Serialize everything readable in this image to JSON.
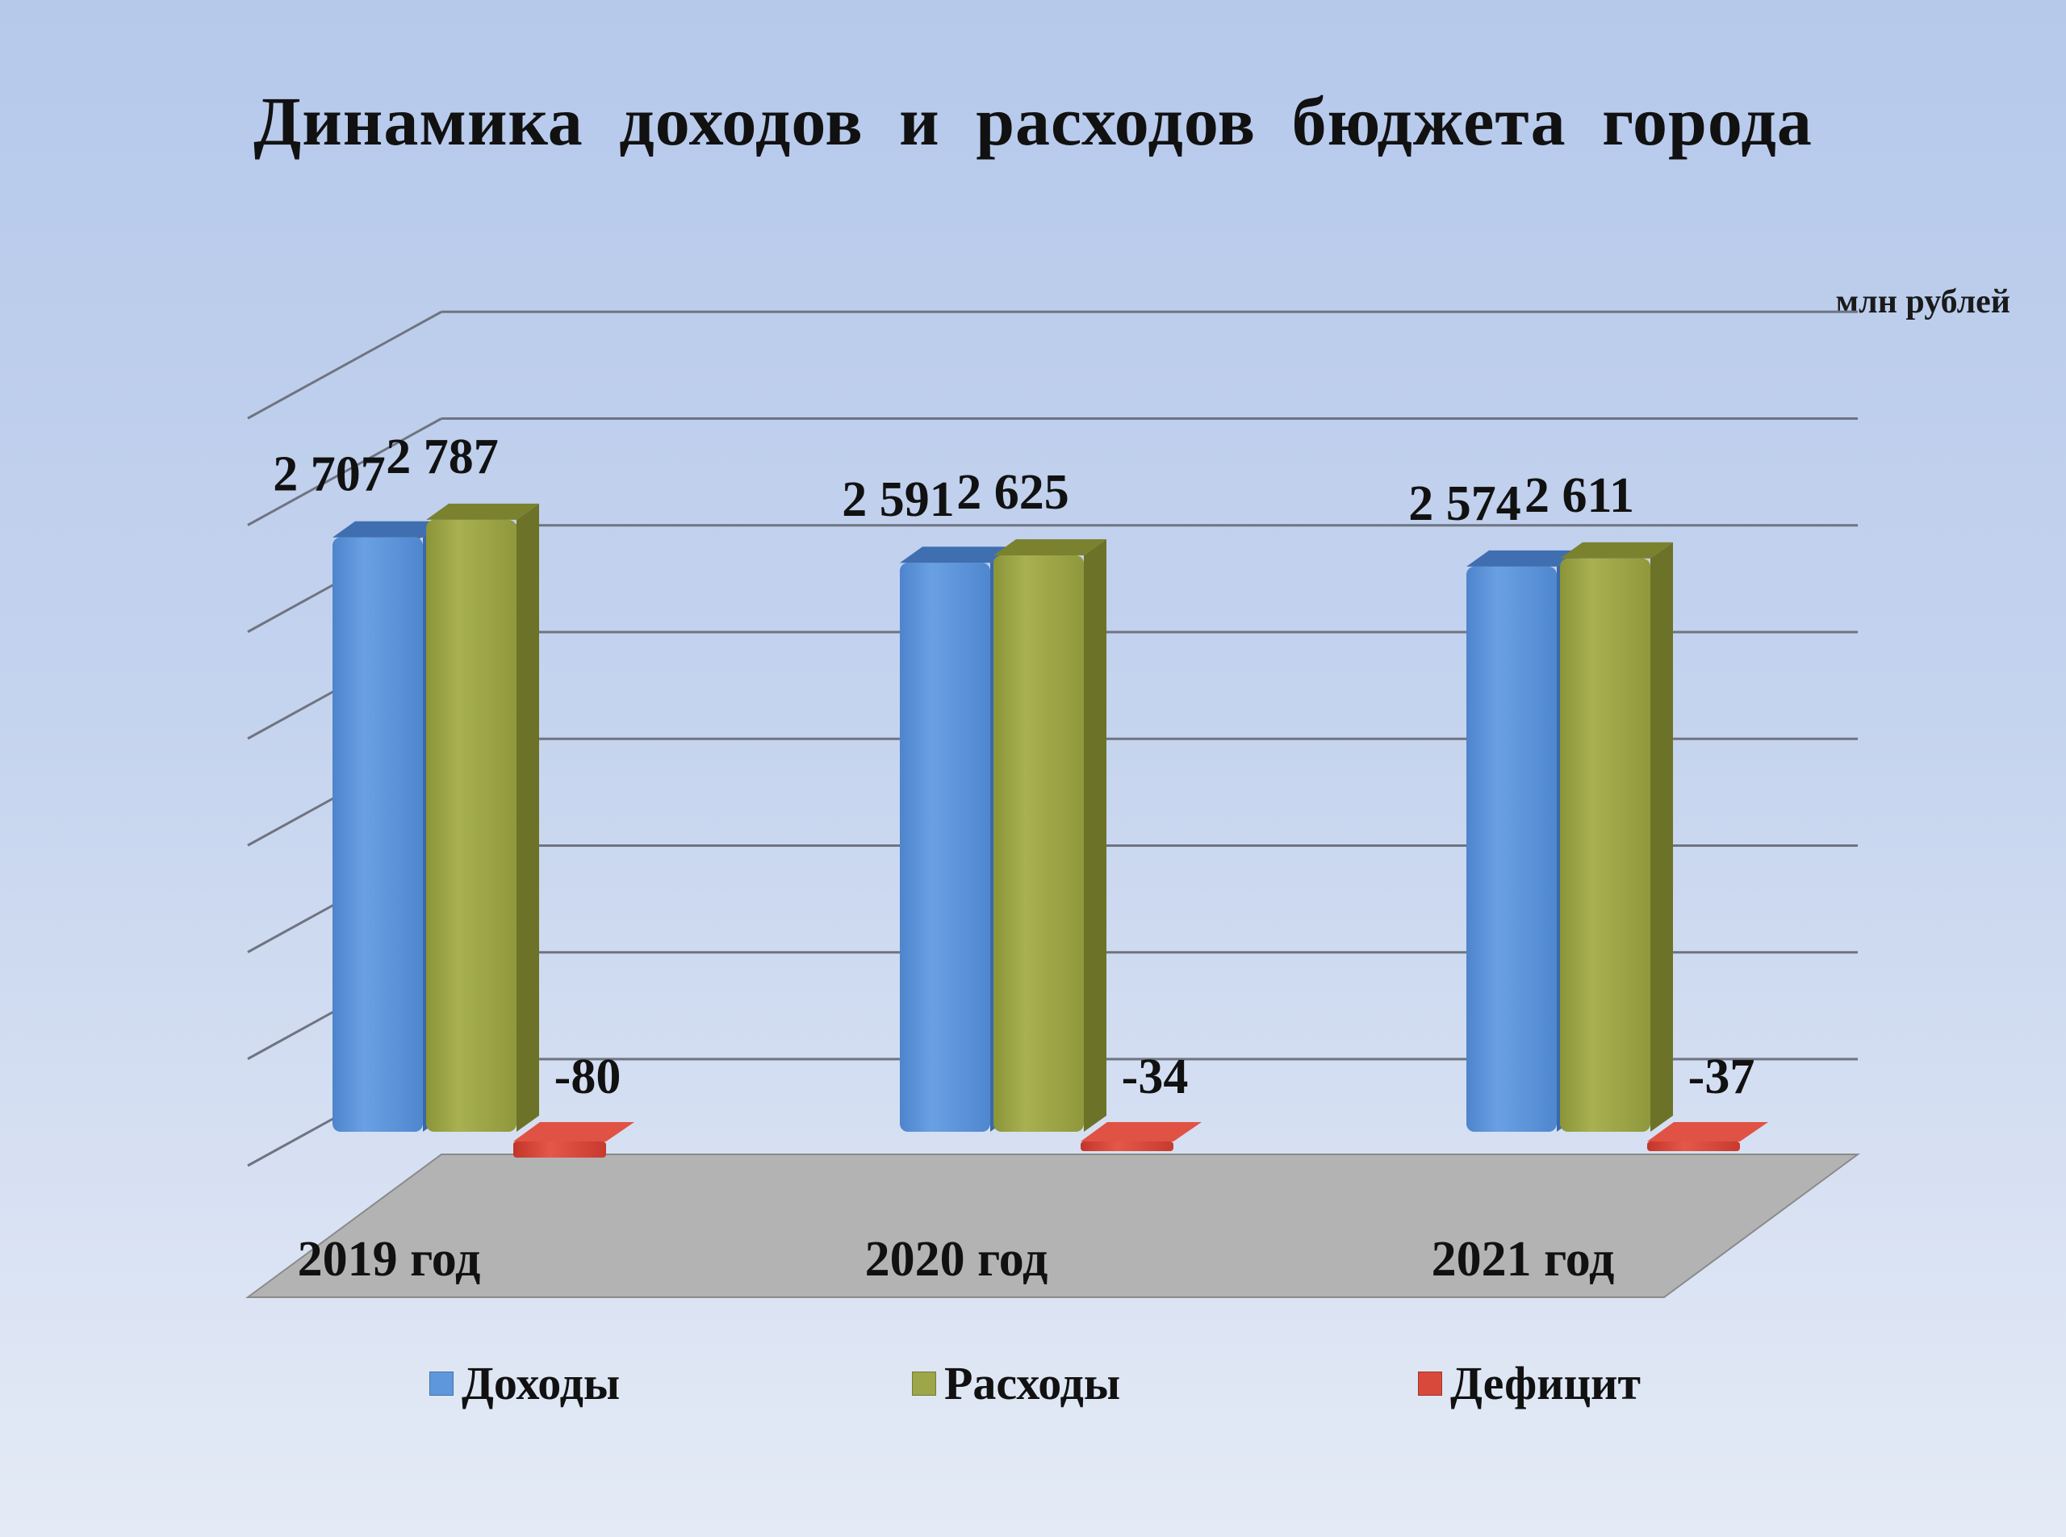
{
  "title": "Динамика  доходов  и расходов  бюджета  города",
  "units": "млн рублей",
  "colors": {
    "income": "#5f97dc",
    "expense": "#9da648",
    "deficit": "#d9493b"
  },
  "legend": [
    {
      "name": "Доходы",
      "color_key": "income",
      "icon": "blue-cube-icon"
    },
    {
      "name": "Расходы",
      "color_key": "expense",
      "icon": "olive-cube-icon"
    },
    {
      "name": "Дефицит",
      "color_key": "deficit",
      "icon": "red-cube-icon"
    }
  ],
  "chart_data": {
    "type": "bar",
    "style": "3d-clustered-column",
    "title": "Динамика  доходов  и расходов  бюджета  города",
    "units": "млн рублей",
    "categories": [
      "2019 год",
      "2020 год",
      "2021 год"
    ],
    "series": [
      {
        "name": "Доходы",
        "values": [
          2707,
          2591,
          2574
        ],
        "labels": [
          "2 707",
          "2 591",
          "2 574"
        ]
      },
      {
        "name": "Расходы",
        "values": [
          2787,
          2625,
          2611
        ],
        "labels": [
          "2 787",
          "2 625",
          "2 611"
        ]
      },
      {
        "name": "Дефицит",
        "values": [
          -80,
          -34,
          -37
        ],
        "labels": [
          "-80",
          "-34",
          "-37"
        ]
      }
    ],
    "grid": true,
    "legend_position": "bottom",
    "axis_tick_labels_visible": false
  }
}
